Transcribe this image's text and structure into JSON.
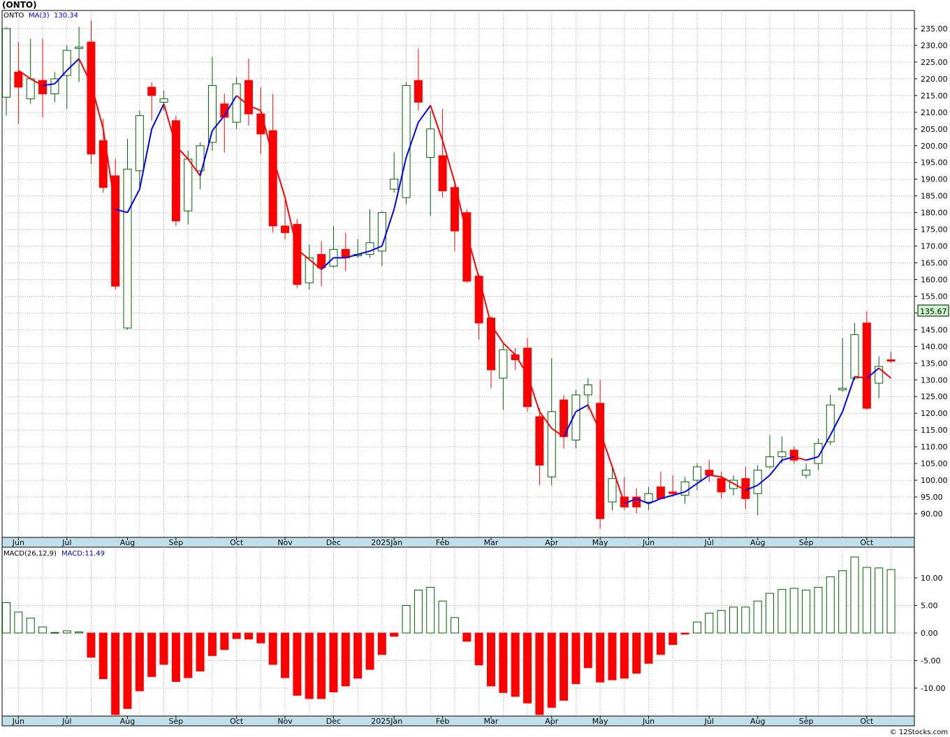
{
  "title": "(ONTO)",
  "copyright": "© 12Stocks.com",
  "colors": {
    "up": "#006400",
    "down": "#ff0000",
    "ma_up": "#0000ee",
    "ma_down": "#ff0000",
    "axis_band": "#bfe0ea",
    "last_price_bg": "#c8f7c8"
  },
  "chart_data": [
    {
      "type": "candlestick",
      "legend": {
        "symbol": "ONTO",
        "ma_label": "MA(3)",
        "ma_value": "130.34"
      },
      "last_price_label": "135.67",
      "ylim": [
        85,
        240
      ],
      "yticks": [
        90,
        95,
        100,
        105,
        110,
        115,
        120,
        125,
        130,
        135,
        140,
        145,
        150,
        155,
        160,
        165,
        170,
        175,
        180,
        185,
        190,
        195,
        200,
        205,
        210,
        215,
        220,
        225,
        230,
        235
      ],
      "xlabels": [
        "Jun",
        "Jul",
        "Aug",
        "Sep",
        "Oct",
        "Nov",
        "Dec",
        "2025Jan",
        "Feb",
        "Mar",
        "Apr",
        "May",
        "Jun",
        "Jul",
        "Aug",
        "Sep",
        "Oct"
      ],
      "xlabel_index": [
        1,
        5,
        10,
        14,
        19,
        23,
        27,
        32,
        36,
        40,
        45,
        49,
        53,
        58,
        62,
        66,
        71
      ],
      "candles": [
        {
          "o": 214.5,
          "h": 235.5,
          "l": 209.0,
          "c": 235.0
        },
        {
          "o": 222.0,
          "h": 231.0,
          "l": 206.5,
          "c": 217.5
        },
        {
          "o": 214.0,
          "h": 232.0,
          "l": 212.5,
          "c": 220.0
        },
        {
          "o": 219.5,
          "h": 232.0,
          "l": 208.5,
          "c": 215.5
        },
        {
          "o": 215.5,
          "h": 222.0,
          "l": 213.0,
          "c": 220.0
        },
        {
          "o": 221.0,
          "h": 230.0,
          "l": 211.0,
          "c": 228.5
        },
        {
          "o": 229.5,
          "h": 235.5,
          "l": 219.0,
          "c": 229.5
        },
        {
          "o": 231.0,
          "h": 237.5,
          "l": 194.5,
          "c": 197.5
        },
        {
          "o": 201.5,
          "h": 208.0,
          "l": 186.0,
          "c": 187.5
        },
        {
          "o": 191.0,
          "h": 196.0,
          "l": 157.0,
          "c": 158.0
        },
        {
          "o": 145.5,
          "h": 202.0,
          "l": 145.0,
          "c": 193.0
        },
        {
          "o": 192.5,
          "h": 210.5,
          "l": 187.5,
          "c": 209.0
        },
        {
          "o": 217.5,
          "h": 219.0,
          "l": 207.5,
          "c": 215.0
        },
        {
          "o": 213.0,
          "h": 216.5,
          "l": 210.5,
          "c": 214.0
        },
        {
          "o": 207.5,
          "h": 209.0,
          "l": 176.0,
          "c": 177.5
        },
        {
          "o": 180.5,
          "h": 198.5,
          "l": 176.5,
          "c": 196.0
        },
        {
          "o": 192.5,
          "h": 201.0,
          "l": 187.0,
          "c": 200.0
        },
        {
          "o": 201.0,
          "h": 226.5,
          "l": 198.5,
          "c": 218.0
        },
        {
          "o": 212.5,
          "h": 215.5,
          "l": 198.0,
          "c": 208.5
        },
        {
          "o": 207.0,
          "h": 220.5,
          "l": 205.0,
          "c": 218.5
        },
        {
          "o": 219.5,
          "h": 226.0,
          "l": 206.0,
          "c": 209.5
        },
        {
          "o": 209.5,
          "h": 217.5,
          "l": 197.5,
          "c": 203.5
        },
        {
          "o": 204.5,
          "h": 215.5,
          "l": 174.0,
          "c": 176.0
        },
        {
          "o": 176.0,
          "h": 184.5,
          "l": 172.0,
          "c": 174.0
        },
        {
          "o": 176.5,
          "h": 178.0,
          "l": 157.5,
          "c": 158.5
        },
        {
          "o": 159.0,
          "h": 170.5,
          "l": 157.0,
          "c": 166.5
        },
        {
          "o": 167.5,
          "h": 171.5,
          "l": 158.0,
          "c": 163.5
        },
        {
          "o": 164.0,
          "h": 176.0,
          "l": 163.5,
          "c": 169.0
        },
        {
          "o": 169.0,
          "h": 174.0,
          "l": 162.5,
          "c": 166.5
        },
        {
          "o": 167.5,
          "h": 172.0,
          "l": 166.5,
          "c": 167.5
        },
        {
          "o": 167.5,
          "h": 181.0,
          "l": 166.5,
          "c": 171.0
        },
        {
          "o": 168.5,
          "h": 180.5,
          "l": 164.0,
          "c": 180.0
        },
        {
          "o": 187.0,
          "h": 198.0,
          "l": 186.0,
          "c": 190.0
        },
        {
          "o": 184.5,
          "h": 219.0,
          "l": 182.5,
          "c": 218.0
        },
        {
          "o": 219.5,
          "h": 229.0,
          "l": 210.5,
          "c": 213.0
        },
        {
          "o": 196.5,
          "h": 210.5,
          "l": 179.0,
          "c": 205.0
        },
        {
          "o": 197.0,
          "h": 211.0,
          "l": 184.5,
          "c": 186.5
        },
        {
          "o": 187.5,
          "h": 189.0,
          "l": 168.5,
          "c": 174.5
        },
        {
          "o": 180.0,
          "h": 181.0,
          "l": 159.0,
          "c": 159.5
        },
        {
          "o": 161.0,
          "h": 161.5,
          "l": 142.0,
          "c": 147.0
        },
        {
          "o": 148.5,
          "h": 149.0,
          "l": 127.5,
          "c": 133.0
        },
        {
          "o": 130.5,
          "h": 141.0,
          "l": 121.0,
          "c": 139.0
        },
        {
          "o": 137.5,
          "h": 139.5,
          "l": 133.0,
          "c": 136.0
        },
        {
          "o": 139.5,
          "h": 142.5,
          "l": 120.5,
          "c": 122.0
        },
        {
          "o": 119.0,
          "h": 121.5,
          "l": 98.5,
          "c": 104.5
        },
        {
          "o": 101.0,
          "h": 136.5,
          "l": 98.5,
          "c": 120.5
        },
        {
          "o": 124.0,
          "h": 125.5,
          "l": 109.5,
          "c": 113.0
        },
        {
          "o": 112.0,
          "h": 127.0,
          "l": 109.5,
          "c": 125.5
        },
        {
          "o": 125.5,
          "h": 130.5,
          "l": 121.0,
          "c": 128.5
        },
        {
          "o": 123.0,
          "h": 130.0,
          "l": 85.5,
          "c": 88.5
        },
        {
          "o": 93.5,
          "h": 104.0,
          "l": 91.0,
          "c": 100.5
        },
        {
          "o": 95.0,
          "h": 101.0,
          "l": 91.0,
          "c": 92.0
        },
        {
          "o": 95.0,
          "h": 97.5,
          "l": 90.0,
          "c": 92.0
        },
        {
          "o": 93.5,
          "h": 98.0,
          "l": 91.0,
          "c": 96.0
        },
        {
          "o": 98.0,
          "h": 102.5,
          "l": 94.5,
          "c": 94.5
        },
        {
          "o": 96.5,
          "h": 101.5,
          "l": 95.0,
          "c": 96.0
        },
        {
          "o": 95.5,
          "h": 101.0,
          "l": 93.0,
          "c": 99.5
        },
        {
          "o": 100.0,
          "h": 105.0,
          "l": 97.0,
          "c": 104.0
        },
        {
          "o": 103.0,
          "h": 106.0,
          "l": 99.5,
          "c": 101.5
        },
        {
          "o": 100.5,
          "h": 102.5,
          "l": 94.5,
          "c": 96.5
        },
        {
          "o": 97.5,
          "h": 101.5,
          "l": 95.5,
          "c": 100.0
        },
        {
          "o": 100.5,
          "h": 104.0,
          "l": 91.5,
          "c": 94.5
        },
        {
          "o": 96.0,
          "h": 104.5,
          "l": 89.5,
          "c": 103.0
        },
        {
          "o": 104.0,
          "h": 113.5,
          "l": 103.5,
          "c": 107.0
        },
        {
          "o": 107.0,
          "h": 113.0,
          "l": 105.0,
          "c": 108.5
        },
        {
          "o": 109.0,
          "h": 110.0,
          "l": 105.0,
          "c": 106.0
        },
        {
          "o": 101.5,
          "h": 105.0,
          "l": 100.5,
          "c": 103.0
        },
        {
          "o": 105.0,
          "h": 112.5,
          "l": 103.0,
          "c": 111.0
        },
        {
          "o": 111.5,
          "h": 125.5,
          "l": 110.5,
          "c": 122.5
        },
        {
          "o": 127.0,
          "h": 142.5,
          "l": 126.5,
          "c": 127.5
        },
        {
          "o": 130.5,
          "h": 147.0,
          "l": 130.0,
          "c": 143.5
        },
        {
          "o": 147.0,
          "h": 150.5,
          "l": 121.0,
          "c": 121.5
        },
        {
          "o": 129.0,
          "h": 137.0,
          "l": 124.5,
          "c": 134.0
        },
        {
          "o": 136.0,
          "h": 138.5,
          "l": 135.0,
          "c": 135.67
        }
      ],
      "ma": [
        null,
        222.5,
        220.0,
        218.0,
        218.5,
        222.5,
        226.0,
        218.5,
        205.0,
        181.0,
        180.0,
        187.0,
        205.0,
        212.5,
        200.0,
        196.0,
        191.0,
        204.5,
        209.0,
        215.0,
        212.0,
        210.5,
        196.5,
        184.5,
        169.0,
        166.0,
        163.0,
        166.5,
        166.5,
        167.5,
        168.5,
        170.0,
        181.0,
        196.5,
        207.0,
        212.0,
        201.5,
        189.0,
        173.5,
        160.5,
        146.5,
        141.0,
        137.5,
        131.5,
        120.5,
        115.5,
        113.0,
        120.5,
        122.5,
        114.5,
        104.0,
        93.0,
        94.5,
        93.0,
        94.5,
        95.5,
        96.5,
        99.0,
        101.5,
        101.0,
        99.0,
        97.0,
        98.5,
        101.5,
        106.0,
        107.0,
        106.0,
        107.0,
        113.5,
        120.5,
        131.0,
        130.5,
        133.5,
        130.5
      ],
      "ma_dir": [
        "n",
        "d",
        "d",
        "d",
        "u",
        "u",
        "u",
        "d",
        "d",
        "d",
        "u",
        "u",
        "u",
        "u",
        "d",
        "d",
        "d",
        "u",
        "u",
        "u",
        "d",
        "d",
        "d",
        "d",
        "d",
        "d",
        "d",
        "u",
        "u",
        "u",
        "u",
        "u",
        "u",
        "u",
        "u",
        "u",
        "d",
        "d",
        "d",
        "d",
        "d",
        "d",
        "d",
        "d",
        "d",
        "d",
        "d",
        "u",
        "u",
        "d",
        "d",
        "d",
        "u",
        "u",
        "u",
        "u",
        "u",
        "u",
        "u",
        "d",
        "d",
        "d",
        "u",
        "u",
        "u",
        "u",
        "d",
        "u",
        "u",
        "u",
        "u",
        "d",
        "u",
        "d"
      ]
    },
    {
      "type": "bar",
      "legend": {
        "label": "MACD(26,12,9)",
        "value_label": "MACD:11.49"
      },
      "ylim": [
        -15,
        15
      ],
      "yticks": [
        -10,
        -5,
        0,
        5,
        10
      ],
      "ytick_labels": [
        "-10.00",
        "-5.00",
        "0.00",
        "5.00",
        "10.00"
      ],
      "xlabels": [
        "Jun",
        "Jul",
        "Aug",
        "Sep",
        "Oct",
        "Nov",
        "Dec",
        "2025Jan",
        "Feb",
        "Mar",
        "Apr",
        "May",
        "Jun",
        "Jul",
        "Aug",
        "Sep",
        "Oct"
      ],
      "values": [
        5.5,
        3.8,
        2.7,
        1.1,
        0.1,
        0.4,
        0.2,
        -4.4,
        -8.3,
        -14.8,
        -13.7,
        -10.5,
        -7.9,
        -5.7,
        -8.8,
        -8.1,
        -6.9,
        -4.1,
        -3.0,
        -1.0,
        -1.1,
        -1.8,
        -5.7,
        -8.1,
        -11.3,
        -11.9,
        -11.9,
        -10.7,
        -9.6,
        -8.2,
        -6.6,
        -3.9,
        -0.6,
        5.0,
        7.8,
        8.3,
        5.8,
        2.8,
        -1.5,
        -5.8,
        -9.6,
        -10.8,
        -11.5,
        -12.7,
        -14.8,
        -13.5,
        -12.2,
        -9.2,
        -6.3,
        -8.9,
        -8.5,
        -8.2,
        -7.3,
        -5.5,
        -3.9,
        -2.1,
        -0.2,
        2.0,
        3.6,
        4.1,
        4.7,
        4.7,
        5.8,
        7.2,
        7.9,
        8.1,
        7.8,
        8.3,
        10.2,
        11.3,
        13.8,
        11.9,
        11.8,
        11.5
      ]
    }
  ]
}
